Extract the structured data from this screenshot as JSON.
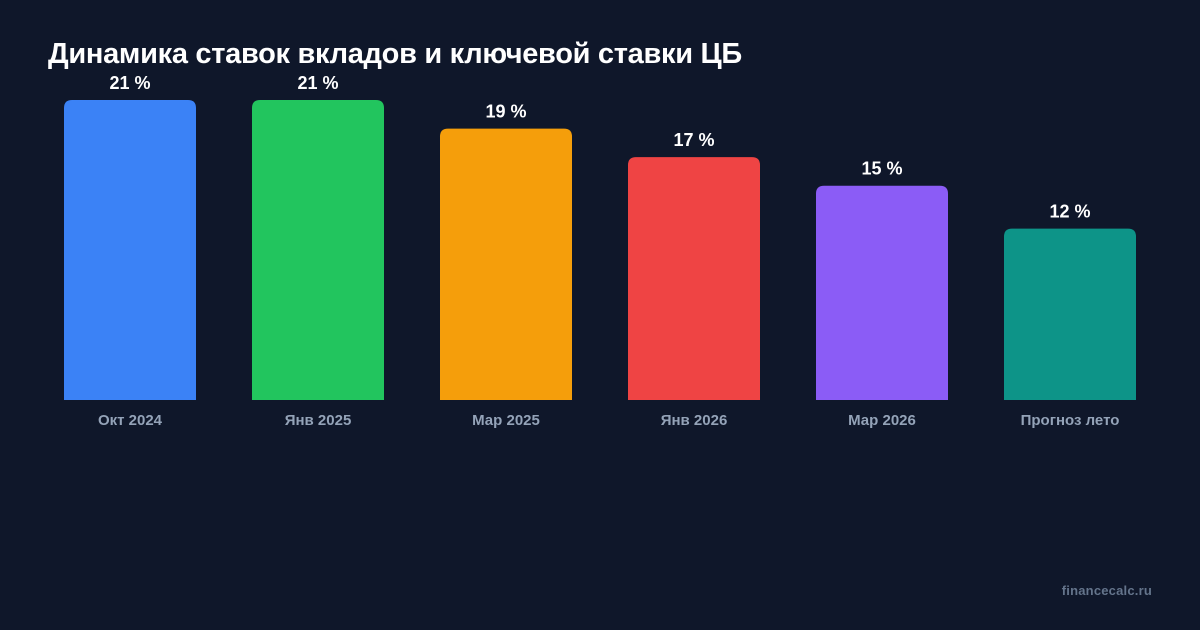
{
  "chart_data": {
    "type": "bar",
    "title": "Динамика ставок вкладов и ключевой ставки ЦБ",
    "categories": [
      "Окт 2024",
      "Янв 2025",
      "Мар 2025",
      "Янв 2026",
      "Мар 2026",
      "Прогноз лето"
    ],
    "values": [
      21,
      21,
      19,
      17,
      15,
      12
    ],
    "value_labels": [
      "21 %",
      "21 %",
      "19 %",
      "17 %",
      "15 %",
      "12 %"
    ],
    "colors": [
      "#3b82f6",
      "#22c55e",
      "#f59e0b",
      "#ef4444",
      "#8b5cf6",
      "#0d9488"
    ],
    "ylim": [
      0,
      21
    ],
    "grid": false,
    "legend": "none",
    "xlabel": "",
    "ylabel": ""
  },
  "footer": {
    "watermark": "financecalc.ru"
  },
  "theme": {
    "background": "#0f172a",
    "text": "#ffffff",
    "tick_text": "#94a3b8",
    "watermark_text": "#64748b"
  }
}
